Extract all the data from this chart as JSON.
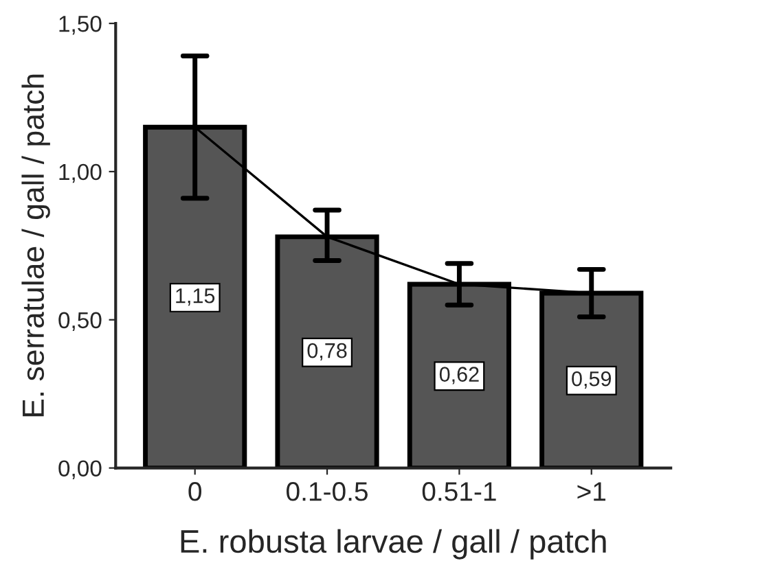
{
  "chart_data": {
    "type": "bar",
    "xlabel": "E. robusta larvae / gall / patch",
    "ylabel": "E. serratulae / gall / patch",
    "categories": [
      "0",
      "0.1-0.5",
      "0.51-1",
      ">1"
    ],
    "series": [
      {
        "color": "#555555",
        "values": [
          1.15,
          0.78,
          0.62,
          0.59
        ],
        "errors": [
          [
            0.91,
            1.39
          ],
          [
            0.7,
            0.87
          ],
          [
            0.55,
            0.69
          ],
          [
            0.51,
            0.67
          ]
        ],
        "value_labels": [
          "1,15",
          "0,78",
          "0,62",
          "0,59"
        ]
      },
      {
        "type": "line",
        "color": "#000000",
        "values": [
          1.15,
          0.78,
          0.62,
          0.59
        ]
      }
    ],
    "ylim": [
      0,
      1.5
    ],
    "yticks": [
      {
        "value": 0,
        "label": "0,00"
      },
      {
        "value": 0.5,
        "label": "0,50"
      },
      {
        "value": 1.0,
        "label": "1,00"
      },
      {
        "value": 1.5,
        "label": "1,50"
      }
    ],
    "grid": false,
    "legend": false
  }
}
